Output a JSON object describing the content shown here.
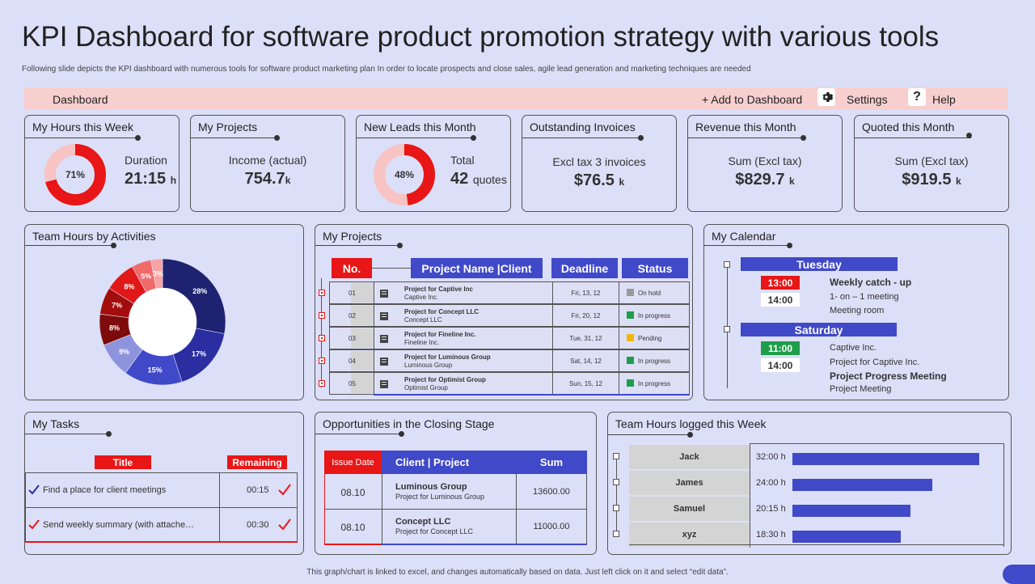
{
  "title": "KPI Dashboard for software product promotion strategy with various tools",
  "subtitle": "Following slide depicts the KPI dashboard with numerous tools for software product marketing plan In order to locate prospects and close sales, agile lead generation and marketing techniques are needed",
  "topbar": {
    "dashboard": "Dashboard",
    "add": "+ Add to Dashboard",
    "settings": "Settings",
    "help": "Help",
    "help_glyph": "?"
  },
  "kpi": {
    "hours": {
      "title": "My Hours this Week",
      "pct_label": "71%",
      "pct": 71,
      "caption": "Duration",
      "value": "21:15",
      "unit": "h"
    },
    "projects": {
      "title": "My Projects",
      "caption": "Income (actual)",
      "value": "754.7",
      "unit": "k"
    },
    "leads": {
      "title": "New Leads this Month",
      "pct_label": "48%",
      "pct": 48,
      "caption": "Total",
      "value": "42",
      "unit": "quotes"
    },
    "invoices": {
      "title": "Outstanding  Invoices",
      "caption": "Excl tax 3 invoices",
      "value": "$76.5",
      "unit": "k"
    },
    "revenue": {
      "title": "Revenue this Month",
      "caption": "Sum (Excl tax)",
      "value": "$829.7",
      "unit": "k"
    },
    "quoted": {
      "title": "Quoted this Month",
      "caption": "Sum (Excl tax)",
      "value": "$919.5",
      "unit": "k"
    }
  },
  "team_activities": {
    "title": "Team Hours by Activities",
    "slices": [
      {
        "label": "28%",
        "value": 28,
        "color": "#1f2270"
      },
      {
        "label": "17%",
        "value": 17,
        "color": "#2a2ea0"
      },
      {
        "label": "15%",
        "value": 15,
        "color": "#4049c8"
      },
      {
        "label": "9%",
        "value": 9,
        "color": "#8e93dc"
      },
      {
        "label": "8%",
        "value": 8,
        "color": "#7e0b0b"
      },
      {
        "label": "7%",
        "value": 7,
        "color": "#a30d0d"
      },
      {
        "label": "8%",
        "value": 8,
        "color": "#e01818"
      },
      {
        "label": "5%",
        "value": 5,
        "color": "#f06a6a"
      },
      {
        "label": "3%",
        "value": 3,
        "color": "#f7a3a3"
      }
    ]
  },
  "projects_table": {
    "title": "My Projects",
    "headers": {
      "no": "No.",
      "name": "Project Name |Client",
      "deadline": "Deadline",
      "status": "Status"
    },
    "rows": [
      {
        "no": "01",
        "name": "Project for Captive Inc",
        "client": "Captive Inc.",
        "deadline": "Fri, 13, 12",
        "status": "On hold",
        "color": "#9a9a9a"
      },
      {
        "no": "02",
        "name": "Project for Concept LLC",
        "client": "Concept  LLC",
        "deadline": "Fri, 20, 12",
        "status": "In progress",
        "color": "#1e9e4a"
      },
      {
        "no": "03",
        "name": "Project for Fineline Inc.",
        "client": "Fineline Inc.",
        "deadline": "Tue, 31, 12",
        "status": "Pending",
        "color": "#f2b705"
      },
      {
        "no": "04",
        "name": "Project for Luminous Group",
        "client": "Luminous  Group",
        "deadline": "Sat, 14, 12",
        "status": "In progress",
        "color": "#1e9e4a"
      },
      {
        "no": "05",
        "name": "Project for Optimist Group",
        "client": "Optimist Group",
        "deadline": "Sun, 15, 12",
        "status": "In progress",
        "color": "#1e9e4a"
      }
    ]
  },
  "calendar": {
    "title": "My Calendar",
    "day1": "Tuesday",
    "t1": "13:00",
    "t2": "14:00",
    "e1_title": "Weekly catch - up",
    "e1_sub": "1- on – 1 meeting",
    "e1_place": "Meeting room",
    "day2": "Saturday",
    "t3": "11:00",
    "t4": "14:00",
    "e2_title": "Captive Inc.",
    "e2_sub": "Project for Captive Inc.",
    "e3_title": "Project Progress Meeting",
    "e3_sub": "Project Meeting"
  },
  "tasks": {
    "title": "My Tasks",
    "col_title": "Title",
    "col_remaining": "Remaining",
    "rows": [
      {
        "title": "Find a place for client meetings",
        "remaining": "00:15"
      },
      {
        "title": "Send weekly summary (with attache…",
        "remaining": "00:30"
      }
    ]
  },
  "opportunities": {
    "title": "Opportunities  in the Closing  Stage",
    "headers": {
      "date": "Issue Date",
      "client": "Client | Project",
      "sum": "Sum"
    },
    "rows": [
      {
        "date": "08.10",
        "client": "Luminous Group",
        "project": "Project for Luminous Group",
        "sum": "13600.00"
      },
      {
        "date": "08.10",
        "client": "Concept LLC",
        "project": "Project for Concept LLC",
        "sum": "11000.00"
      }
    ]
  },
  "team_hours": {
    "title": "Team Hours logged this Week",
    "rows": [
      {
        "name": "Jack",
        "hours": "32:00 h",
        "value": 32
      },
      {
        "name": "James",
        "hours": "24:00 h",
        "value": 24
      },
      {
        "name": "Samuel",
        "hours": "20:15 h",
        "value": 20.25
      },
      {
        "name": "xyz",
        "hours": "18:30 h",
        "value": 18.5
      }
    ]
  },
  "footer": "This graph/chart is linked to excel, and changes automatically based on data. Just left click on it and select “edit data”."
}
